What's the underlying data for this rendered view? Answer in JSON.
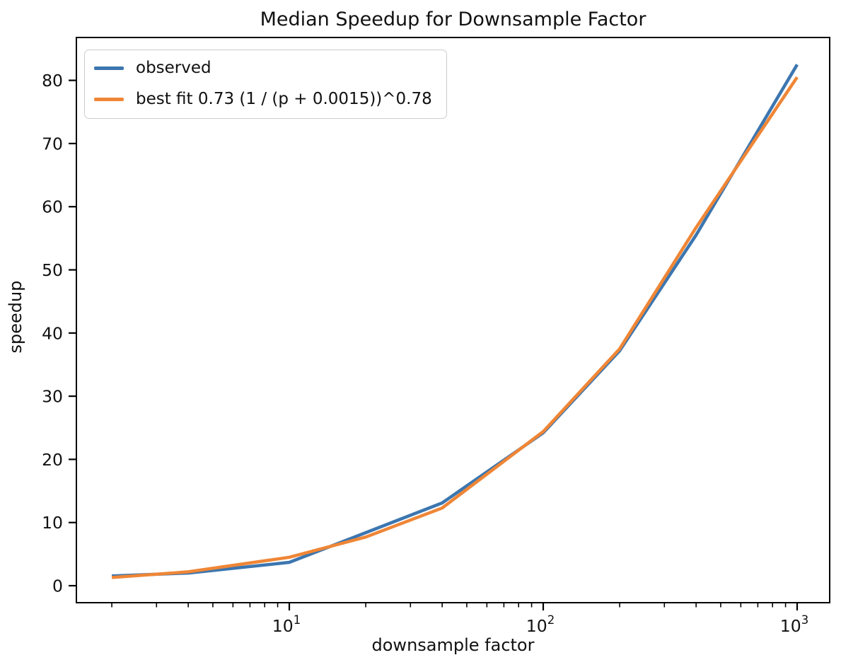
{
  "chart_data": {
    "type": "line",
    "title": "Median Speedup for Downsample Factor",
    "xlabel": "downsample factor",
    "ylabel": "speedup",
    "x_scale": "log",
    "grid": false,
    "legend_position": "upper left",
    "x": [
      2,
      4,
      10,
      20,
      40,
      100,
      200,
      400,
      1000
    ],
    "series": [
      {
        "name": "observed",
        "color": "#3C76AF",
        "values": [
          1.55,
          2.0,
          3.7,
          8.4,
          13.1,
          24.2,
          37.2,
          55.5,
          82.5
        ]
      },
      {
        "name": "best fit 0.73 (1 / (p + 0.0015))^0.78",
        "color": "#EF8636",
        "values": [
          1.3,
          2.2,
          4.5,
          7.7,
          12.3,
          24.4,
          37.5,
          56.7,
          80.5
        ]
      }
    ],
    "xlim": [
      1.45,
      1343
    ],
    "ylim": [
      -2.7,
      86.8
    ],
    "y_ticks": [
      0,
      10,
      20,
      30,
      40,
      50,
      60,
      70,
      80
    ],
    "x_major_ticks": [
      {
        "value": 10,
        "base": "10",
        "exp": "1"
      },
      {
        "value": 100,
        "base": "10",
        "exp": "2"
      },
      {
        "value": 1000,
        "base": "10",
        "exp": "3"
      }
    ],
    "x_minor_subs": [
      2,
      3,
      4,
      5,
      6,
      7,
      8,
      9
    ],
    "axis_color": "#000000",
    "text_color": "#111111"
  }
}
